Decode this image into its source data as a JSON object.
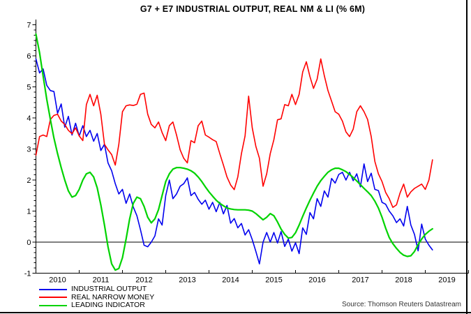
{
  "title": "G7 + E7 INDUSTRIAL OUTPUT, REAL NM & LI (% 6M)",
  "source": "Source: Thomson Reuters Datastream",
  "legend": {
    "items": [
      {
        "label": "INDUSTRIAL OUTPUT",
        "color": "#0000EE"
      },
      {
        "label": "REAL NARROW MONEY",
        "color": "#FF0000"
      },
      {
        "label": "LEADING INDICATOR",
        "color": "#00D300"
      }
    ]
  },
  "axes": {
    "x_labels": [
      "2010",
      "2011",
      "2012",
      "2013",
      "2014",
      "2015",
      "2016",
      "2017",
      "2018",
      "2019"
    ],
    "y_tick_labels": [
      "-1",
      "0",
      "1",
      "2",
      "3",
      "4",
      "5",
      "6",
      "7"
    ]
  },
  "chart_data": {
    "type": "line",
    "title": "G7 + E7 INDUSTRIAL OUTPUT, REAL NM & LI (% 6M)",
    "xlabel": "",
    "ylabel": "% 6M",
    "frequency": "monthly",
    "x_start": "2010-01",
    "x_end": "2019-03",
    "x_axis_years": [
      2010,
      2011,
      2012,
      2013,
      2014,
      2015,
      2016,
      2017,
      2018,
      2019
    ],
    "ylim": [
      -1,
      7
    ],
    "y_ticks": [
      -1,
      0,
      1,
      2,
      3,
      4,
      5,
      6,
      7
    ],
    "zero_line": true,
    "grid": false,
    "legend_position": "bottom-left",
    "series": [
      {
        "name": "INDUSTRIAL OUTPUT",
        "color": "#0000EE",
        "width": 1.6,
        "values": [
          5.9,
          5.45,
          5.58,
          5.05,
          4.88,
          4.85,
          4.15,
          4.45,
          3.7,
          4.05,
          3.45,
          3.83,
          3.42,
          3.75,
          3.4,
          3.6,
          3.25,
          3.5,
          2.95,
          3.15,
          2.55,
          2.3,
          1.88,
          1.55,
          1.7,
          1.25,
          1.55,
          1.13,
          0.85,
          0.4,
          -0.1,
          -0.15,
          0.0,
          0.2,
          0.75,
          0.55,
          1.5,
          2.0,
          1.4,
          1.55,
          1.8,
          1.88,
          2.07,
          1.5,
          1.6,
          1.38,
          1.22,
          1.35,
          1.06,
          1.28,
          0.98,
          1.28,
          0.91,
          1.18,
          0.61,
          0.76,
          0.46,
          0.6,
          0.23,
          0.4,
          0.08,
          -0.3,
          -0.7,
          0.0,
          0.31,
          0.0,
          0.31,
          -0.03,
          0.34,
          -0.14,
          0.1,
          -0.29,
          -0.02,
          -0.37,
          0.46,
          0.25,
          0.95,
          0.75,
          1.4,
          1.15,
          1.65,
          1.45,
          2.05,
          1.9,
          2.18,
          2.25,
          2.0,
          2.25,
          1.98,
          2.2,
          1.78,
          2.52,
          1.95,
          2.22,
          1.7,
          1.66,
          1.28,
          1.22,
          1.0,
          0.85,
          0.63,
          0.75,
          0.52,
          1.15,
          0.55,
          0.25,
          -0.28,
          0.58,
          0.1,
          -0.1,
          -0.25
        ]
      },
      {
        "name": "REAL NARROW MONEY",
        "color": "#FF0000",
        "width": 1.6,
        "values": [
          2.8,
          3.4,
          3.45,
          3.4,
          3.95,
          4.08,
          4.12,
          3.9,
          3.79,
          3.6,
          3.49,
          3.68,
          3.42,
          3.27,
          4.43,
          4.76,
          4.39,
          4.73,
          4.12,
          3.15,
          2.97,
          2.82,
          2.48,
          3.15,
          4.2,
          4.39,
          4.42,
          4.4,
          4.44,
          4.76,
          4.8,
          4.12,
          3.79,
          3.68,
          3.87,
          3.53,
          3.27,
          3.75,
          3.87,
          3.45,
          2.97,
          2.7,
          2.55,
          3.27,
          3.2,
          3.75,
          3.9,
          3.45,
          3.38,
          3.3,
          3.24,
          2.85,
          2.48,
          2.1,
          1.84,
          1.69,
          2.1,
          2.85,
          3.42,
          4.7,
          3.68,
          3.08,
          2.7,
          1.8,
          2.2,
          2.85,
          3.3,
          3.94,
          3.97,
          4.43,
          4.39,
          4.76,
          4.43,
          4.76,
          5.48,
          5.81,
          5.33,
          4.95,
          5.25,
          5.9,
          5.36,
          4.88,
          4.54,
          4.2,
          4.12,
          3.9,
          3.55,
          3.4,
          3.64,
          4.2,
          4.39,
          4.2,
          3.95,
          3.4,
          2.6,
          2.2,
          1.95,
          1.6,
          1.4,
          1.12,
          1.2,
          1.58,
          1.87,
          1.45,
          1.62,
          1.73,
          1.8,
          1.87,
          1.7,
          2.0,
          2.65
        ]
      },
      {
        "name": "LEADING INDICATOR",
        "color": "#00D300",
        "width": 2.2,
        "values": [
          6.7,
          6.1,
          5.35,
          4.6,
          3.95,
          3.35,
          2.85,
          2.4,
          2.0,
          1.65,
          1.45,
          1.5,
          1.7,
          2.0,
          2.2,
          2.25,
          2.1,
          1.75,
          1.2,
          0.55,
          -0.15,
          -0.7,
          -0.9,
          -0.85,
          -0.5,
          0.1,
          0.75,
          1.25,
          1.45,
          1.4,
          1.15,
          0.8,
          0.62,
          0.75,
          1.05,
          1.5,
          1.95,
          2.2,
          2.35,
          2.4,
          2.4,
          2.38,
          2.35,
          2.3,
          2.22,
          2.1,
          1.95,
          1.78,
          1.62,
          1.48,
          1.35,
          1.25,
          1.17,
          1.1,
          1.07,
          1.05,
          1.04,
          1.04,
          1.04,
          1.03,
          1.0,
          0.92,
          0.82,
          0.72,
          0.8,
          0.92,
          0.85,
          0.65,
          0.42,
          0.25,
          0.13,
          0.15,
          0.3,
          0.55,
          0.83,
          1.1,
          1.35,
          1.58,
          1.8,
          1.98,
          2.12,
          2.25,
          2.33,
          2.38,
          2.38,
          2.33,
          2.27,
          2.18,
          2.08,
          1.97,
          1.85,
          1.73,
          1.62,
          1.5,
          1.32,
          1.1,
          0.8,
          0.45,
          0.15,
          -0.05,
          -0.2,
          -0.33,
          -0.42,
          -0.46,
          -0.44,
          -0.3,
          -0.08,
          0.1,
          0.25,
          0.35,
          0.43
        ]
      }
    ]
  }
}
